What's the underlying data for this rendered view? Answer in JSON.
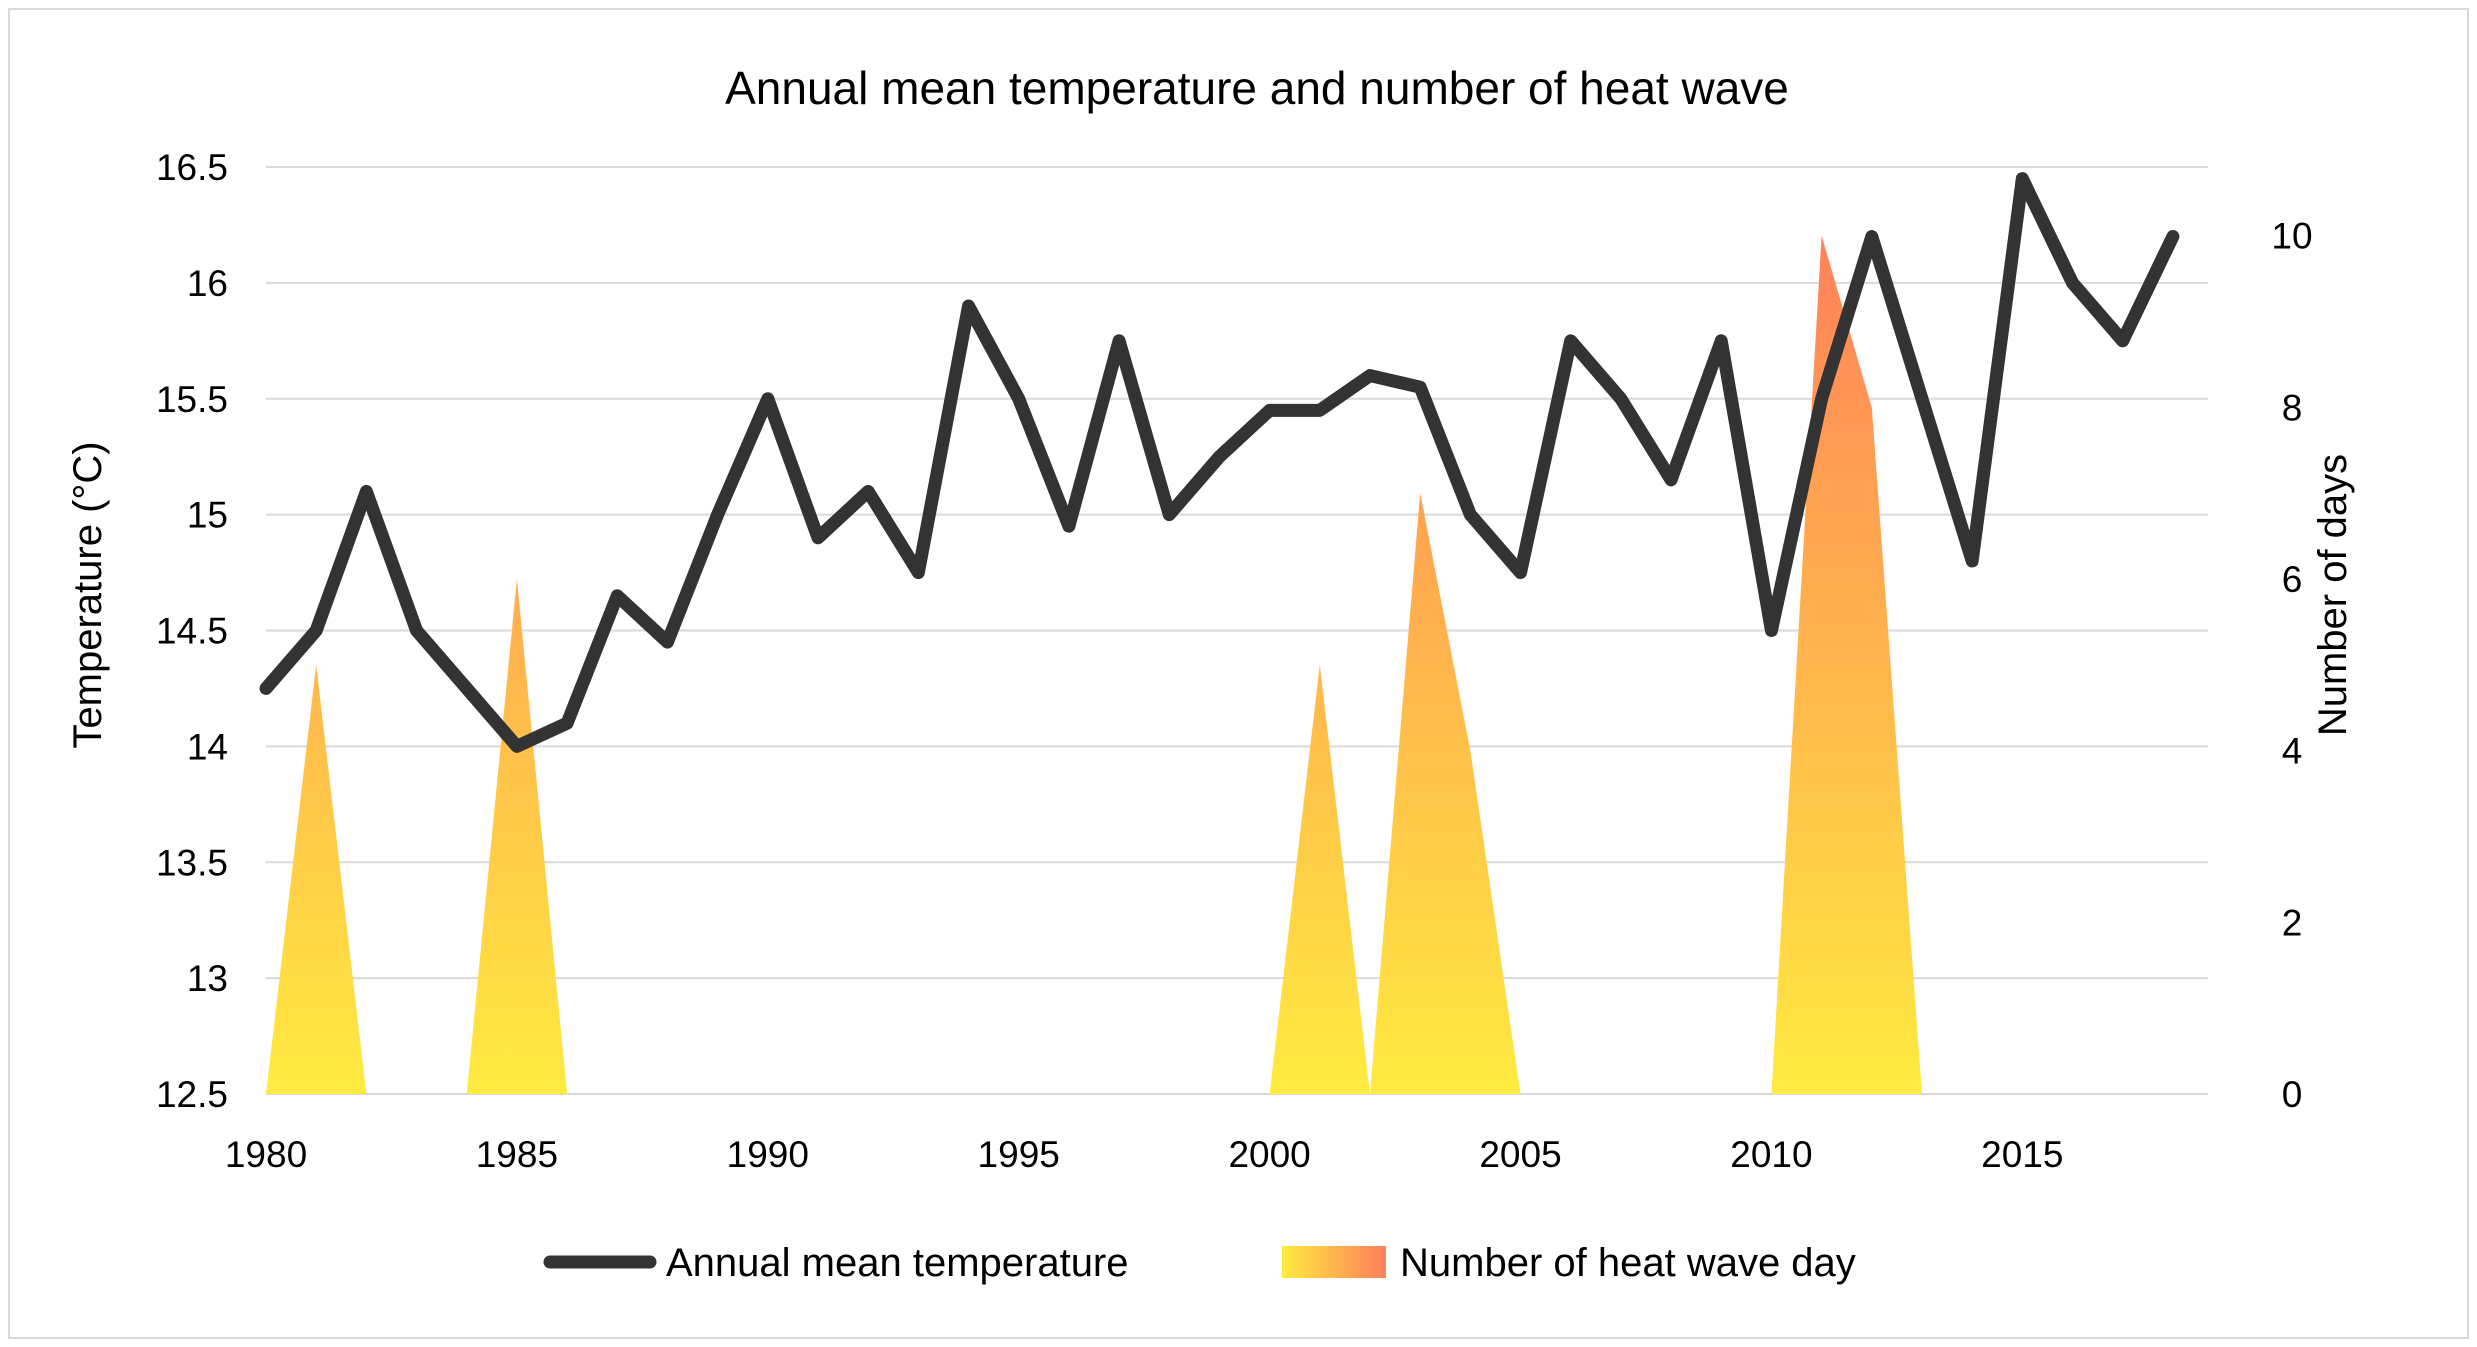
{
  "chart_data": {
    "type": "line",
    "title": "Annual mean temperature and number of heat wave",
    "xlabel": "",
    "ylabel": "Temperature (°C)",
    "y2label": "Number of days",
    "x": [
      1980,
      1981,
      1982,
      1983,
      1984,
      1985,
      1986,
      1987,
      1988,
      1989,
      1990,
      1991,
      1992,
      1993,
      1994,
      1995,
      1996,
      1997,
      1998,
      1999,
      2000,
      2001,
      2002,
      2003,
      2004,
      2005,
      2006,
      2007,
      2008,
      2009,
      2010,
      2011,
      2012,
      2013,
      2014,
      2015,
      2016,
      2017,
      2018
    ],
    "xlim": [
      1980,
      2018
    ],
    "xticks": [
      "1980",
      "1985",
      "1990",
      "1995",
      "2000",
      "2005",
      "2010",
      "2015"
    ],
    "ylim": [
      12.5,
      16.5
    ],
    "yticks": [
      "12.5",
      "13",
      "13.5",
      "14",
      "14.5",
      "15",
      "15.5",
      "16",
      "16.5"
    ],
    "y2lim": [
      0,
      10.8
    ],
    "y2ticks": [
      "0",
      "2",
      "4",
      "6",
      "8",
      "10"
    ],
    "grid": true,
    "legend_position": "bottom",
    "series": [
      {
        "name": "Annual mean temperature",
        "type": "line",
        "axis": "left",
        "color": "#333333",
        "values": [
          14.25,
          14.5,
          15.1,
          14.5,
          14.25,
          14.0,
          14.1,
          14.65,
          14.45,
          15.0,
          15.5,
          14.9,
          15.1,
          14.75,
          15.9,
          15.5,
          14.95,
          15.75,
          15.0,
          15.25,
          15.45,
          15.45,
          15.6,
          15.55,
          15.0,
          14.75,
          15.75,
          15.5,
          15.15,
          15.75,
          14.5,
          15.5,
          16.2,
          15.5,
          14.8,
          16.45,
          16.0,
          15.75,
          16.2
        ]
      },
      {
        "name": "Number of heat wave day",
        "type": "area",
        "axis": "right",
        "color_low": "#ffeb40",
        "color_high": "#ff7f5a",
        "values": [
          0,
          5,
          0,
          0,
          0,
          6,
          0,
          0,
          0,
          0,
          0,
          0,
          0,
          0,
          0,
          0,
          0,
          0,
          0,
          0,
          0,
          5,
          0,
          7,
          4,
          0,
          0,
          0,
          0,
          0,
          0,
          10,
          8,
          0,
          0,
          0,
          0,
          0,
          0
        ]
      }
    ]
  }
}
